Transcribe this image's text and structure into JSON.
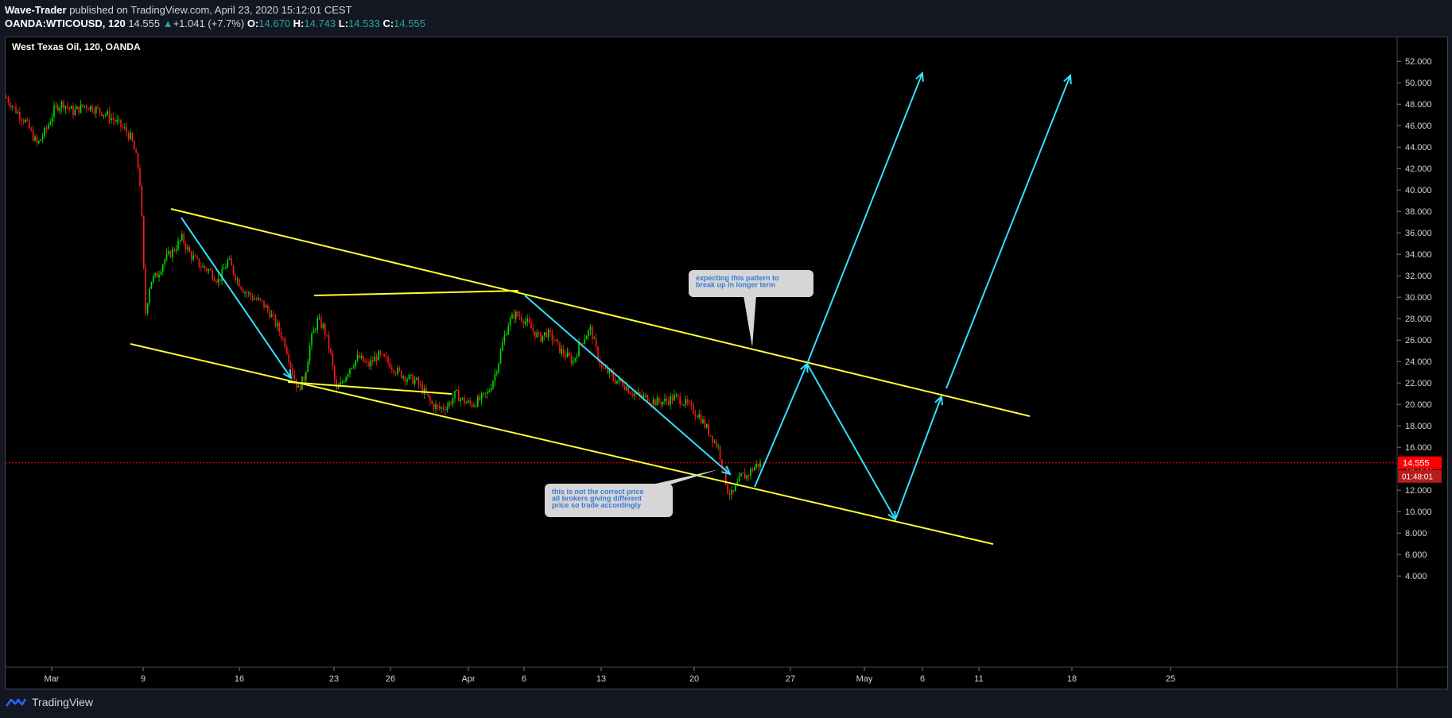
{
  "header": {
    "author": "Wave-Trader",
    "published": "published on TradingView.com, April 23, 2020 15:12:01 CEST",
    "symbol": "OANDA:WTICOUSD, 120",
    "last": "14.555",
    "change_arrow": "▲",
    "change": "+1.041 (+7.7%)",
    "o_label": "O:",
    "o_value": "14.670",
    "h_label": "H:",
    "h_value": "14.743",
    "l_label": "L:",
    "l_value": "14.533",
    "c_label": "C:",
    "c_value": "14.555"
  },
  "footer": {
    "brand": "TradingView",
    "logo_icon": "tradingview-logo-icon"
  },
  "colors": {
    "background": "#000000",
    "page": "#131722",
    "up": "#26a69a",
    "candle_up": "#00e000",
    "candle_down": "#ff1a1a",
    "trendline": "#ffff33",
    "projection": "#33e0ff",
    "price_tag": "#ff0000",
    "callout_bg": "#d6d6d6",
    "callout_text": "#3a7bd5"
  },
  "chart_data": {
    "type": "candlestick",
    "title": "West Texas Oil, 120, OANDA",
    "y_axis": {
      "ticks": [
        "52.000",
        "50.000",
        "48.000",
        "46.000",
        "44.000",
        "42.000",
        "40.000",
        "38.000",
        "36.000",
        "34.000",
        "32.000",
        "30.000",
        "28.000",
        "26.000",
        "24.000",
        "22.000",
        "20.000",
        "18.000",
        "16.000",
        "14.000",
        "12.000",
        "10.000",
        "8.000",
        "6.000",
        "4.000"
      ],
      "range": [
        3,
        53
      ]
    },
    "x_axis": {
      "ticks": [
        "Mar",
        "9",
        "16",
        "23",
        "26",
        "Apr",
        "6",
        "13",
        "20",
        "27",
        "May",
        "6",
        "11",
        "18",
        "25"
      ]
    },
    "current_price_label": "14.555",
    "countdown_label": "01:48:01",
    "price_path": [
      [
        0,
        48.7
      ],
      [
        12,
        47.5
      ],
      [
        25,
        46.4
      ],
      [
        40,
        44.2
      ],
      [
        52,
        45.8
      ],
      [
        62,
        47.6
      ],
      [
        72,
        48.1
      ],
      [
        85,
        47.3
      ],
      [
        100,
        47.9
      ],
      [
        115,
        47.5
      ],
      [
        128,
        47.0
      ],
      [
        140,
        46.3
      ],
      [
        150,
        45.6
      ],
      [
        158,
        44.8
      ],
      [
        166,
        42.5
      ],
      [
        170,
        40.0
      ],
      [
        172,
        36.0
      ],
      [
        174,
        32.0
      ],
      [
        176,
        28.5
      ],
      [
        182,
        31.5
      ],
      [
        190,
        32.0
      ],
      [
        200,
        33.5
      ],
      [
        210,
        34.3
      ],
      [
        222,
        35.5
      ],
      [
        232,
        34.0
      ],
      [
        244,
        33.0
      ],
      [
        256,
        32.5
      ],
      [
        268,
        31.5
      ],
      [
        280,
        33.5
      ],
      [
        290,
        31.8
      ],
      [
        300,
        30.6
      ],
      [
        312,
        29.9
      ],
      [
        322,
        29.5
      ],
      [
        332,
        28.6
      ],
      [
        342,
        27.2
      ],
      [
        352,
        25.6
      ],
      [
        360,
        23.2
      ],
      [
        368,
        21.4
      ],
      [
        376,
        22.6
      ],
      [
        384,
        26.0
      ],
      [
        392,
        27.8
      ],
      [
        400,
        27.2
      ],
      [
        408,
        25.0
      ],
      [
        416,
        21.2
      ],
      [
        424,
        22.2
      ],
      [
        434,
        23.6
      ],
      [
        444,
        24.4
      ],
      [
        456,
        23.6
      ],
      [
        468,
        24.6
      ],
      [
        480,
        24.0
      ],
      [
        492,
        23.1
      ],
      [
        504,
        22.5
      ],
      [
        516,
        22.2
      ],
      [
        526,
        21.2
      ],
      [
        536,
        20.0
      ],
      [
        546,
        19.6
      ],
      [
        556,
        19.9
      ],
      [
        566,
        21.0
      ],
      [
        576,
        20.3
      ],
      [
        586,
        20.0
      ],
      [
        596,
        20.4
      ],
      [
        606,
        21.0
      ],
      [
        614,
        22.5
      ],
      [
        620,
        24.0
      ],
      [
        626,
        26.0
      ],
      [
        632,
        27.5
      ],
      [
        640,
        28.4
      ],
      [
        648,
        28.2
      ],
      [
        656,
        27.6
      ],
      [
        664,
        26.8
      ],
      [
        672,
        26.2
      ],
      [
        680,
        26.7
      ],
      [
        690,
        26.0
      ],
      [
        698,
        25.0
      ],
      [
        706,
        24.5
      ],
      [
        714,
        24.0
      ],
      [
        722,
        25.6
      ],
      [
        730,
        26.5
      ],
      [
        736,
        27.0
      ],
      [
        742,
        25.2
      ],
      [
        750,
        23.3
      ],
      [
        758,
        23.0
      ],
      [
        766,
        22.3
      ],
      [
        776,
        22.0
      ],
      [
        786,
        21.2
      ],
      [
        796,
        20.8
      ],
      [
        806,
        20.6
      ],
      [
        818,
        20.2
      ],
      [
        830,
        20.3
      ],
      [
        842,
        20.7
      ],
      [
        852,
        20.3
      ],
      [
        862,
        19.6
      ],
      [
        872,
        19.0
      ],
      [
        880,
        18.0
      ],
      [
        888,
        17.0
      ],
      [
        896,
        16.0
      ],
      [
        902,
        14.2
      ],
      [
        908,
        12.0
      ],
      [
        914,
        11.5
      ],
      [
        920,
        12.5
      ],
      [
        926,
        13.4
      ],
      [
        932,
        13.3
      ],
      [
        938,
        13.9
      ],
      [
        944,
        14.3
      ],
      [
        950,
        14.5
      ]
    ]
  },
  "annotations": {
    "callout_1": [
      "expecting this pattern to",
      "break up in longer term"
    ],
    "callout_2": [
      "this is not the correct price",
      "all brokers giving different",
      "price so trade accordingly"
    ]
  }
}
